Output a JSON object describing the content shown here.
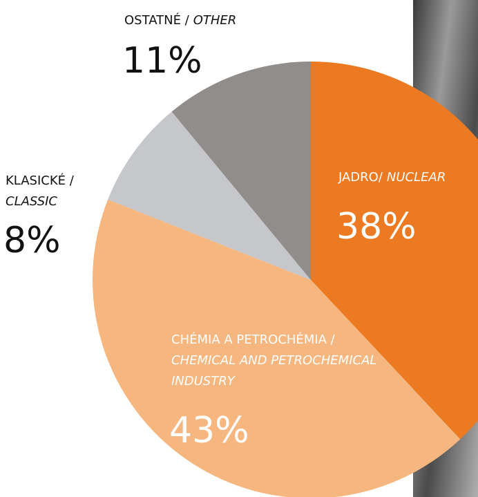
{
  "chart_data": {
    "type": "pie",
    "categories": [
      {
        "sk": "JADRO/",
        "en": [
          "NUCLEAR"
        ]
      },
      {
        "sk": "CHÉMIA A PETROCHÉMIA /",
        "en": [
          "CHEMICAL AND PETROCHEMICAL",
          "INDUSTRY"
        ]
      },
      {
        "sk": "KLASICKÉ /",
        "en": [
          "CLASSIC"
        ]
      },
      {
        "sk": "OSTATNÉ /",
        "en": [
          "OTHER"
        ]
      }
    ],
    "values": [
      38,
      43,
      8,
      11
    ],
    "value_labels": [
      "38%",
      "43%",
      "8%",
      "11%"
    ],
    "colors": [
      "#ec7a22",
      "#f5b77f",
      "#c6c7cb",
      "#918d8b"
    ]
  }
}
